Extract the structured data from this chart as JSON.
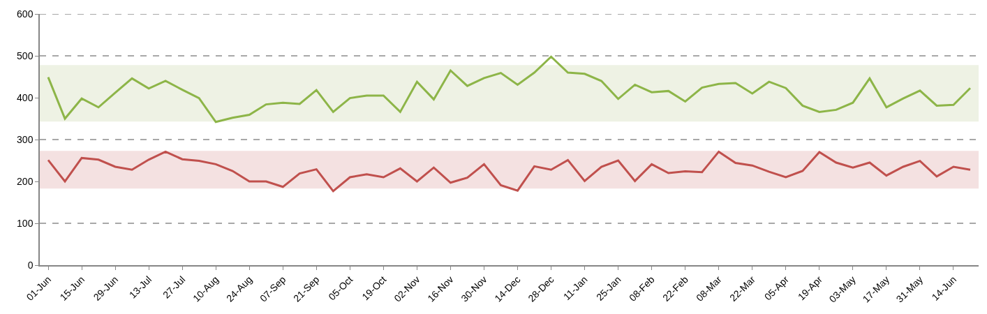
{
  "chart_data": {
    "type": "line",
    "categories": [
      "01-Jun",
      null,
      "15-Jun",
      null,
      "29-Jun",
      null,
      "13-Jul",
      null,
      "27-Jul",
      null,
      "10-Aug",
      null,
      "24-Aug",
      null,
      "07-Sep",
      null,
      "21-Sep",
      null,
      "05-Oct",
      null,
      "19-Oct",
      null,
      "02-Nov",
      null,
      "16-Nov",
      null,
      "30-Nov",
      null,
      "14-Dec",
      null,
      "28-Dec",
      null,
      "11-Jan",
      null,
      "25-Jan",
      null,
      "08-Feb",
      null,
      "22-Feb",
      null,
      "08-Mar",
      null,
      "22-Mar",
      null,
      "05-Apr",
      null,
      "19-Apr",
      null,
      "03-May",
      null,
      "17-May",
      null,
      "31-May",
      null,
      "14-Jun",
      null
    ],
    "series": [
      {
        "color": "#8db548",
        "values": [
          449,
          350,
          398,
          377,
          412,
          446,
          422,
          440,
          419,
          399,
          342,
          352,
          359,
          384,
          388,
          385,
          418,
          366,
          399,
          405,
          405,
          366,
          438,
          396,
          465,
          428,
          447,
          459,
          431,
          460,
          498,
          460,
          457,
          440,
          397,
          431,
          413,
          416,
          391,
          424,
          433,
          435,
          410,
          438,
          423,
          381,
          366,
          371,
          388,
          446,
          377,
          398,
          417,
          381,
          383,
          423
        ]
      },
      {
        "color": "#c0504d",
        "values": [
          251,
          200,
          256,
          252,
          235,
          228,
          252,
          271,
          253,
          249,
          241,
          225,
          200,
          200,
          187,
          219,
          229,
          177,
          210,
          217,
          210,
          231,
          200,
          233,
          197,
          209,
          241,
          191,
          178,
          236,
          228,
          251,
          201,
          235,
          250,
          201,
          241,
          220,
          224,
          222,
          271,
          244,
          238,
          223,
          210,
          225,
          270,
          245,
          233,
          245,
          214,
          235,
          249,
          212,
          235,
          228
        ]
      }
    ],
    "bands": [
      {
        "axis": "y",
        "from": 343,
        "to": 478,
        "color": "#eef2e4"
      },
      {
        "axis": "y",
        "from": 183,
        "to": 273,
        "color": "#f4e1e1"
      }
    ],
    "ylim": [
      0,
      600
    ],
    "yticks": [
      0,
      100,
      200,
      300,
      400,
      500,
      600
    ],
    "grid": "y",
    "line_style": "solid",
    "marker": "none"
  }
}
